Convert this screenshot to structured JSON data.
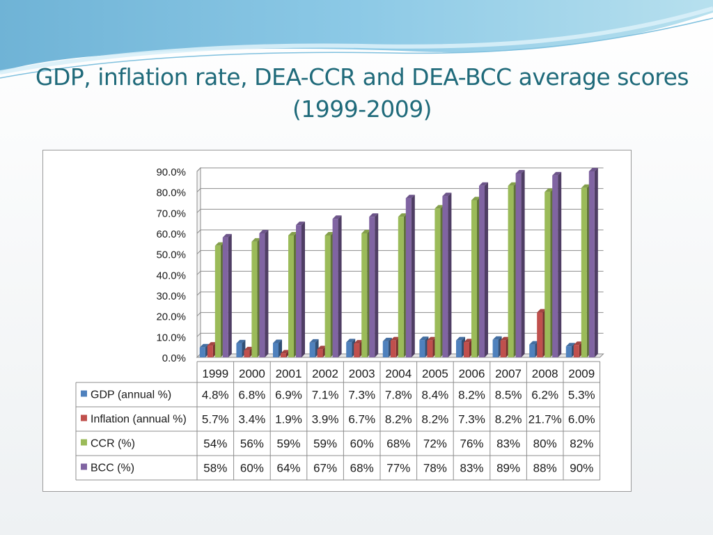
{
  "slide": {
    "title_line1": "GDP, inflation rate, DEA-CCR and DEA-BCC average scores",
    "title_line2": "(1999-2009)"
  },
  "colors": {
    "GDP": "#4f81bd",
    "Inflation": "#c0504d",
    "CCR": "#9bbb59",
    "BCC": "#8064a2",
    "title": "#1f6a7a"
  },
  "chart_data": {
    "type": "bar",
    "title": "",
    "xlabel": "",
    "ylabel": "",
    "ylim": [
      0,
      90
    ],
    "ytick_labels": [
      "0.0%",
      "10.0%",
      "20.0%",
      "30.0%",
      "40.0%",
      "50.0%",
      "60.0%",
      "70.0%",
      "80.0%",
      "90.0%"
    ],
    "grid": true,
    "legend": "table-below",
    "categories": [
      "1999",
      "2000",
      "2001",
      "2002",
      "2003",
      "2004",
      "2005",
      "2006",
      "2007",
      "2008",
      "2009"
    ],
    "series": [
      {
        "name": "GDP (annual %)",
        "color_key": "GDP",
        "values": [
          4.8,
          6.8,
          6.9,
          7.1,
          7.3,
          7.8,
          8.4,
          8.2,
          8.5,
          6.2,
          5.3
        ],
        "labels": [
          "4.8%",
          "6.8%",
          "6.9%",
          "7.1%",
          "7.3%",
          "7.8%",
          "8.4%",
          "8.2%",
          "8.5%",
          "6.2%",
          "5.3%"
        ]
      },
      {
        "name": "Inflation (annual %)",
        "color_key": "Inflation",
        "values": [
          5.7,
          3.4,
          1.9,
          3.9,
          6.7,
          8.2,
          8.2,
          7.3,
          8.2,
          21.7,
          6.0
        ],
        "labels": [
          "5.7%",
          "3.4%",
          "1.9%",
          "3.9%",
          "6.7%",
          "8.2%",
          "8.2%",
          "7.3%",
          "8.2%",
          "21.7%",
          "6.0%"
        ]
      },
      {
        "name": "CCR (%)",
        "color_key": "CCR",
        "values": [
          54,
          56,
          59,
          59,
          60,
          68,
          72,
          76,
          83,
          80,
          82
        ],
        "labels": [
          "54%",
          "56%",
          "59%",
          "59%",
          "60%",
          "68%",
          "72%",
          "76%",
          "83%",
          "80%",
          "82%"
        ]
      },
      {
        "name": "BCC (%)",
        "color_key": "BCC",
        "values": [
          58,
          60,
          64,
          67,
          68,
          77,
          78,
          83,
          89,
          88,
          90
        ],
        "labels": [
          "58%",
          "60%",
          "64%",
          "67%",
          "68%",
          "77%",
          "78%",
          "83%",
          "89%",
          "88%",
          "90%"
        ]
      }
    ]
  }
}
